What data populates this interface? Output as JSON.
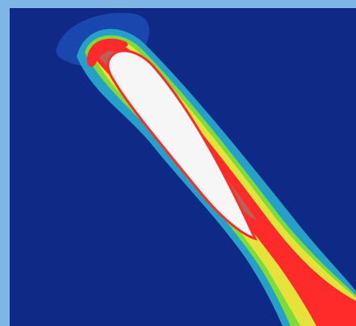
{
  "image": {
    "kind": "flow-field-visualization",
    "colors": {
      "border": "#7fb6e6",
      "background": "#0f2a86",
      "low": "#1b4fb8",
      "mid_low": "#25a0c8",
      "mid": "#39c7a4",
      "mid_high": "#7ddb3b",
      "high": "#ffe33a",
      "very_high": "#ff2a2a",
      "airfoil": "#f6f6f6"
    }
  }
}
